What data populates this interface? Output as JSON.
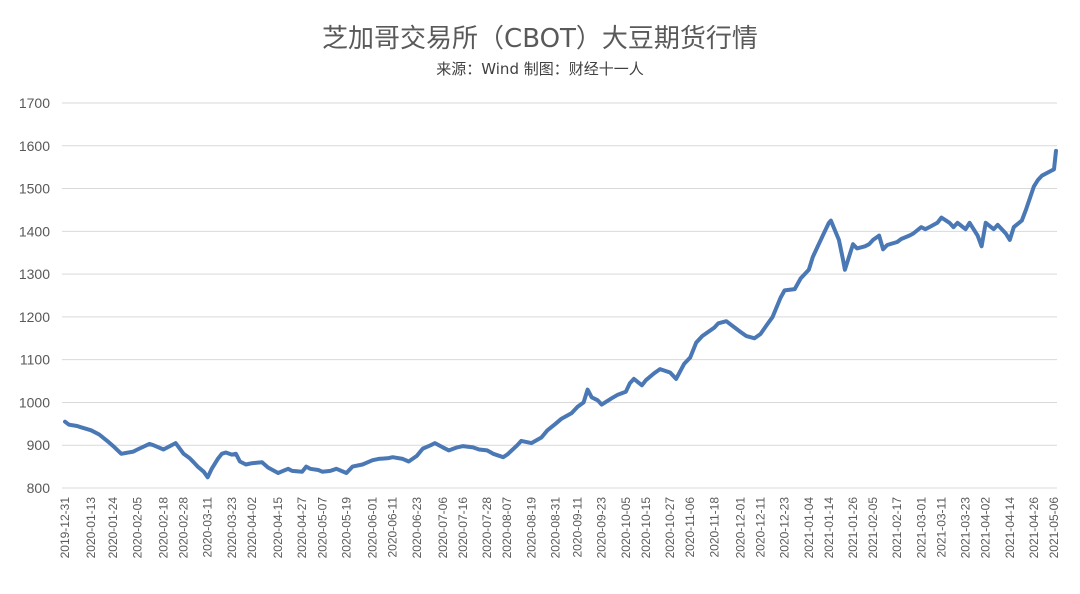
{
  "chart_data": {
    "type": "line",
    "title": "芝加哥交易所（CBOT）大豆期货行情",
    "subtitle": "来源：Wind 制图：财经十一人",
    "xlabel": "",
    "ylabel": "",
    "ylim": [
      800,
      1700
    ],
    "yticks": [
      800,
      900,
      1000,
      1100,
      1200,
      1300,
      1400,
      1500,
      1600,
      1700
    ],
    "grid": true,
    "x_tick_labels": [
      "2019-12-31",
      "2020-01-13",
      "2020-01-24",
      "2020-02-05",
      "2020-02-18",
      "2020-02-28",
      "2020-03-11",
      "2020-03-23",
      "2020-04-02",
      "2020-04-15",
      "2020-04-27",
      "2020-05-07",
      "2020-05-19",
      "2020-06-01",
      "2020-06-11",
      "2020-06-23",
      "2020-07-06",
      "2020-07-16",
      "2020-07-28",
      "2020-08-07",
      "2020-08-19",
      "2020-08-31",
      "2020-09-11",
      "2020-09-23",
      "2020-10-05",
      "2020-10-15",
      "2020-10-27",
      "2020-11-06",
      "2020-11-18",
      "2020-12-01",
      "2020-12-11",
      "2020-12-23",
      "2021-01-04",
      "2021-01-14",
      "2021-01-26",
      "2021-02-05",
      "2021-02-17",
      "2021-03-01",
      "2021-03-11",
      "2021-03-23",
      "2021-04-02",
      "2021-04-14",
      "2021-04-26",
      "2021-05-06"
    ],
    "series": [
      {
        "name": "",
        "x": [
          "2019-12-31",
          "2020-01-02",
          "2020-01-06",
          "2020-01-08",
          "2020-01-13",
          "2020-01-17",
          "2020-01-21",
          "2020-01-24",
          "2020-01-28",
          "2020-02-03",
          "2020-02-05",
          "2020-02-11",
          "2020-02-13",
          "2020-02-18",
          "2020-02-20",
          "2020-02-24",
          "2020-02-28",
          "2020-03-02",
          "2020-03-04",
          "2020-03-06",
          "2020-03-09",
          "2020-03-11",
          "2020-03-13",
          "2020-03-16",
          "2020-03-18",
          "2020-03-20",
          "2020-03-23",
          "2020-03-25",
          "2020-03-27",
          "2020-03-30",
          "2020-04-02",
          "2020-04-07",
          "2020-04-10",
          "2020-04-15",
          "2020-04-20",
          "2020-04-22",
          "2020-04-27",
          "2020-04-29",
          "2020-05-01",
          "2020-05-05",
          "2020-05-07",
          "2020-05-11",
          "2020-05-14",
          "2020-05-19",
          "2020-05-22",
          "2020-05-27",
          "2020-06-01",
          "2020-06-04",
          "2020-06-09",
          "2020-06-11",
          "2020-06-16",
          "2020-06-19",
          "2020-06-23",
          "2020-06-26",
          "2020-06-30",
          "2020-07-02",
          "2020-07-06",
          "2020-07-09",
          "2020-07-13",
          "2020-07-16",
          "2020-07-21",
          "2020-07-24",
          "2020-07-28",
          "2020-07-31",
          "2020-08-05",
          "2020-08-07",
          "2020-08-12",
          "2020-08-14",
          "2020-08-19",
          "2020-08-24",
          "2020-08-27",
          "2020-08-31",
          "2020-09-03",
          "2020-09-08",
          "2020-09-11",
          "2020-09-14",
          "2020-09-16",
          "2020-09-18",
          "2020-09-21",
          "2020-09-23",
          "2020-09-28",
          "2020-10-01",
          "2020-10-05",
          "2020-10-07",
          "2020-10-09",
          "2020-10-13",
          "2020-10-15",
          "2020-10-19",
          "2020-10-22",
          "2020-10-27",
          "2020-10-30",
          "2020-11-03",
          "2020-11-06",
          "2020-11-09",
          "2020-11-12",
          "2020-11-18",
          "2020-11-20",
          "2020-11-24",
          "2020-12-01",
          "2020-12-04",
          "2020-12-08",
          "2020-12-11",
          "2020-12-14",
          "2020-12-17",
          "2020-12-21",
          "2020-12-23",
          "2020-12-28",
          "2020-12-31",
          "2021-01-04",
          "2021-01-06",
          "2021-01-08",
          "2021-01-12",
          "2021-01-14",
          "2021-01-15",
          "2021-01-19",
          "2021-01-21",
          "2021-01-22",
          "2021-01-26",
          "2021-01-28",
          "2021-02-01",
          "2021-02-03",
          "2021-02-05",
          "2021-02-08",
          "2021-02-10",
          "2021-02-12",
          "2021-02-17",
          "2021-02-19",
          "2021-02-23",
          "2021-02-25",
          "2021-03-01",
          "2021-03-03",
          "2021-03-05",
          "2021-03-09",
          "2021-03-11",
          "2021-03-15",
          "2021-03-17",
          "2021-03-19",
          "2021-03-23",
          "2021-03-25",
          "2021-03-29",
          "2021-03-31",
          "2021-04-02",
          "2021-04-06",
          "2021-04-08",
          "2021-04-12",
          "2021-04-14",
          "2021-04-16",
          "2021-04-20",
          "2021-04-22",
          "2021-04-26",
          "2021-04-28",
          "2021-04-30",
          "2021-05-04",
          "2021-05-06",
          "2021-05-07"
        ],
        "values": [
          955,
          948,
          945,
          942,
          935,
          925,
          910,
          898,
          880,
          885,
          890,
          903,
          900,
          890,
          895,
          905,
          880,
          870,
          860,
          850,
          838,
          825,
          845,
          868,
          880,
          883,
          878,
          880,
          862,
          855,
          858,
          860,
          848,
          835,
          845,
          840,
          838,
          850,
          845,
          842,
          838,
          840,
          845,
          835,
          850,
          855,
          865,
          868,
          870,
          872,
          868,
          862,
          875,
          892,
          900,
          905,
          895,
          888,
          895,
          898,
          895,
          890,
          888,
          880,
          872,
          878,
          900,
          910,
          905,
          918,
          935,
          950,
          962,
          975,
          990,
          1000,
          1030,
          1012,
          1005,
          995,
          1010,
          1018,
          1025,
          1045,
          1055,
          1040,
          1052,
          1068,
          1078,
          1070,
          1055,
          1090,
          1105,
          1140,
          1155,
          1175,
          1185,
          1190,
          1165,
          1155,
          1150,
          1160,
          1180,
          1200,
          1245,
          1262,
          1265,
          1290,
          1310,
          1340,
          1360,
          1400,
          1420,
          1425,
          1380,
          1335,
          1310,
          1370,
          1360,
          1365,
          1370,
          1380,
          1390,
          1358,
          1368,
          1375,
          1382,
          1390,
          1395,
          1410,
          1405,
          1410,
          1420,
          1432,
          1420,
          1410,
          1420,
          1405,
          1420,
          1390,
          1365,
          1420,
          1405,
          1415,
          1395,
          1380,
          1410,
          1425,
          1450,
          1505,
          1520,
          1530,
          1540,
          1545,
          1588
        ]
      }
    ]
  }
}
